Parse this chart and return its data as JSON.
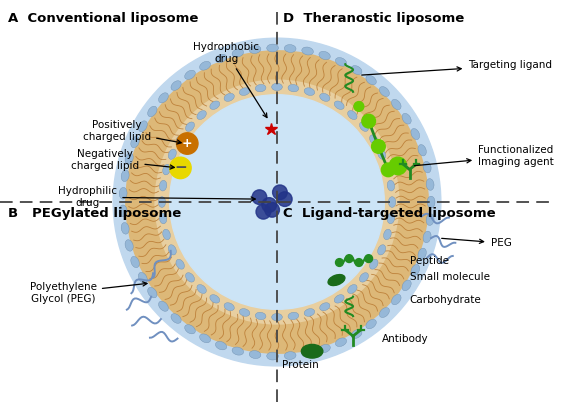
{
  "bg_color": "#ffffff",
  "label_A": "A  Conventional liposome",
  "label_B": "B   PEGylated liposome",
  "label_C": "C  Ligand-targeted liposome",
  "label_D": "D  Theranostic liposome",
  "ann_hydrophobic": "Hydrophobic\ndrug",
  "ann_pos_lipid": "Positively\ncharged lipid",
  "ann_neg_lipid": "Negatively\ncharged lipid",
  "ann_hydrophilic": "Hydrophilic\ndrug",
  "ann_peg_full": "Polyethylene\nGlycol (PEG)",
  "ann_targeting": "Targeting ligand",
  "ann_functionalized": "Functionalized\nImaging agent",
  "ann_peg": "PEG",
  "ann_small_mol": "Small molecule",
  "ann_carbohydrate": "Carbohydrate",
  "ann_peptide": "Peptide",
  "ann_protein": "Protein",
  "ann_antibody": "Antibody",
  "head_color": "#96b8d8",
  "tail_color": "#b87830",
  "inner_color": "#cce4f4",
  "peach_color": "#e0c090",
  "pos_lipid_color": "#c87000",
  "neg_lipid_color": "#e8d800",
  "hydrophilic_color": "#223388",
  "hydrophobic_color": "#cc0000",
  "peg_color": "#7090c0",
  "green_dark": "#1a6b1a",
  "green_light": "#66cc00",
  "green_mid": "#228b22",
  "dashed_color": "#444444"
}
